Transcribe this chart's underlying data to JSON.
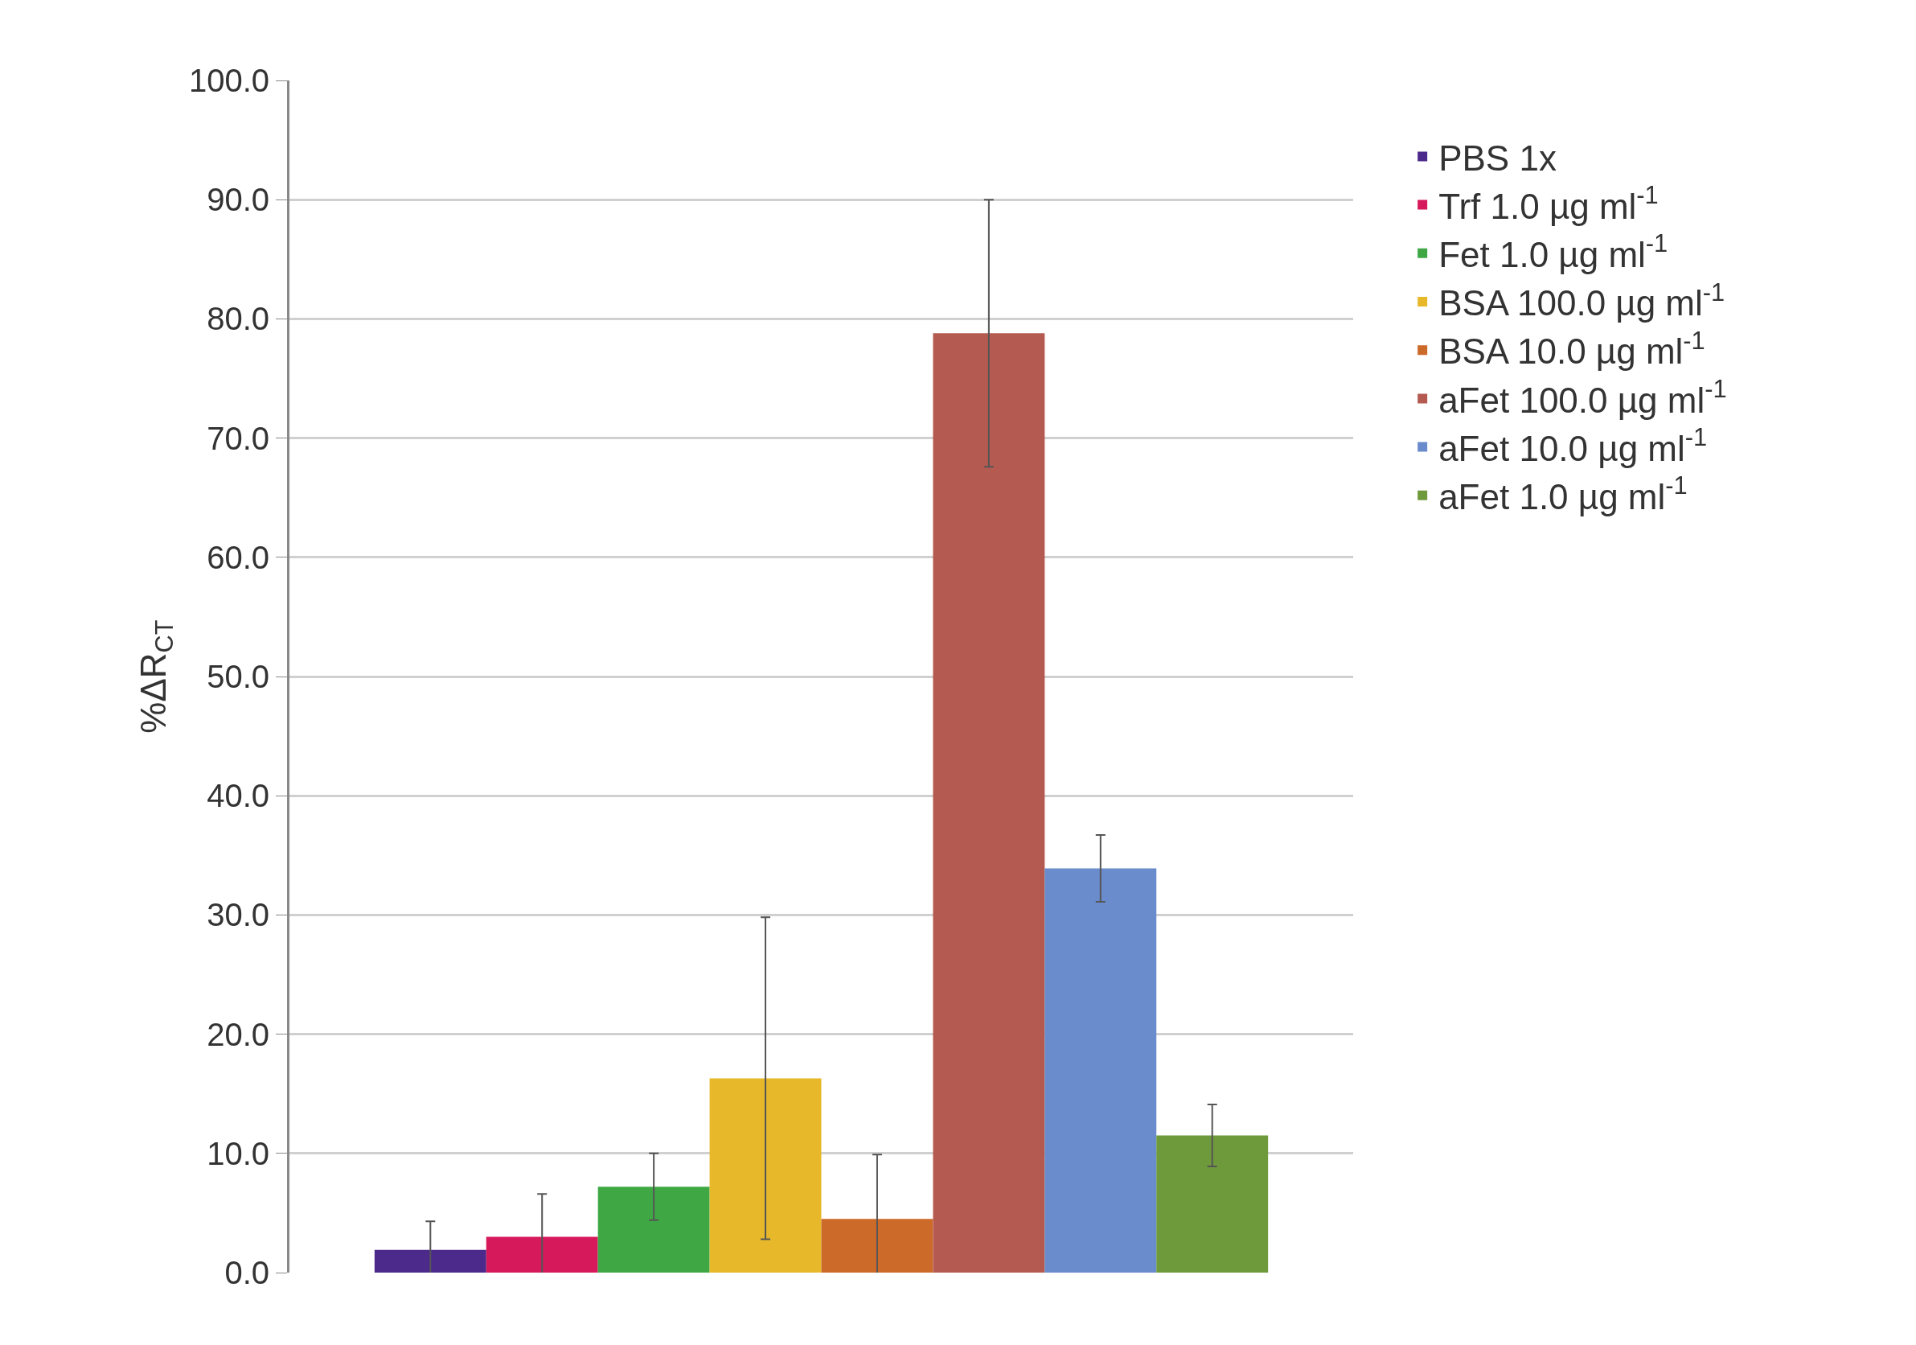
{
  "chart_data": {
    "type": "bar",
    "ylabel": "%ΔR$_{CT}$",
    "categories": [
      null
    ],
    "series": [
      {
        "name": "PBS 1x",
        "color": "#4b2a8c",
        "values": [
          1.9
        ],
        "errors": [
          2.4
        ]
      },
      {
        "name": "Trf 1.0 µg ml$^{-1}$",
        "color": "#d6195a",
        "values": [
          3.0
        ],
        "errors": [
          3.6
        ]
      },
      {
        "name": "Fet 1.0 µg ml$^{-1}$",
        "color": "#3fa845",
        "values": [
          7.2
        ],
        "errors": [
          2.8
        ]
      },
      {
        "name": "BSA 100.0 µg ml$^{-1}$",
        "color": "#e6b82a",
        "values": [
          16.3
        ],
        "errors": [
          13.5
        ]
      },
      {
        "name": "BSA 10.0 µg ml$^{-1}$",
        "color": "#cc6a2a",
        "values": [
          4.5
        ],
        "errors": [
          5.4
        ]
      },
      {
        "name": "aFet 100.0 µg ml$^{-1}$",
        "color": "#b55a50",
        "values": [
          78.8
        ],
        "errors": [
          11.2
        ]
      },
      {
        "name": "aFet 10.0 µg ml$^{-1}$",
        "color": "#6a8ccc",
        "values": [
          33.9
        ],
        "errors": [
          2.8
        ]
      },
      {
        "name": "aFet 1.0 µg ml$^{-1}$",
        "color": "#6e9a3c",
        "values": [
          11.5
        ],
        "errors": [
          2.6
        ]
      }
    ],
    "ylim": [
      0,
      100
    ],
    "yticks": [
      {
        "value": 0,
        "label": "0.0"
      },
      {
        "value": 10,
        "label": "10.0"
      },
      {
        "value": 20,
        "label": "20.0"
      },
      {
        "value": 30,
        "label": "30.0"
      },
      {
        "value": 40,
        "label": "40.0"
      },
      {
        "value": 50,
        "label": "50.0"
      },
      {
        "value": 60,
        "label": "60.0"
      },
      {
        "value": 70,
        "label": "70.0"
      },
      {
        "value": 80,
        "label": "80.0"
      },
      {
        "value": 90,
        "label": "90.0"
      },
      {
        "value": 100,
        "label": "100.0"
      }
    ],
    "grid": "y",
    "legend": "right"
  }
}
